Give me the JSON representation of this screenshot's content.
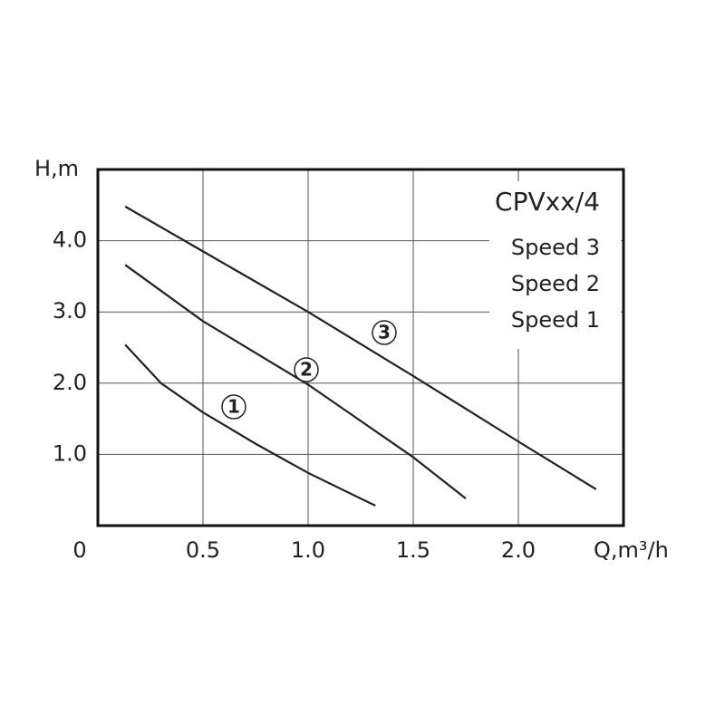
{
  "chart_data": {
    "type": "line",
    "annotation": "CPVxx/4",
    "xlabel": "Q,m³/h",
    "ylabel": "H,m",
    "xlim": [
      0,
      2.5
    ],
    "ylim": [
      0,
      5
    ],
    "xticks": [
      0,
      0.5,
      {
        "value": 1,
        "label": "1.0"
      },
      1.5,
      {
        "value": 2,
        "label": "2.0"
      }
    ],
    "yticks": [
      {
        "value": 1,
        "label": "1.0"
      },
      {
        "value": 2,
        "label": "2.0"
      },
      {
        "value": 3,
        "label": "3.0"
      },
      {
        "value": 4,
        "label": "4.0"
      }
    ],
    "grid": true,
    "series": [
      {
        "name": "Speed 3",
        "label": "3",
        "color": "#222222",
        "x": [
          0.13,
          0.5,
          1.0,
          1.5,
          2.0,
          2.37
        ],
        "values": [
          4.48,
          3.85,
          3.0,
          2.1,
          1.18,
          0.51
        ]
      },
      {
        "name": "Speed 2",
        "label": "2",
        "color": "#222222",
        "x": [
          0.13,
          0.5,
          1.0,
          1.5,
          1.75
        ],
        "values": [
          3.66,
          2.87,
          1.98,
          0.96,
          0.38
        ]
      },
      {
        "name": "Speed 1",
        "label": "1",
        "color": "#222222",
        "x": [
          0.13,
          0.3,
          0.5,
          0.75,
          1.0,
          1.32
        ],
        "values": [
          2.54,
          2.0,
          1.59,
          1.15,
          0.74,
          0.28
        ]
      }
    ]
  }
}
